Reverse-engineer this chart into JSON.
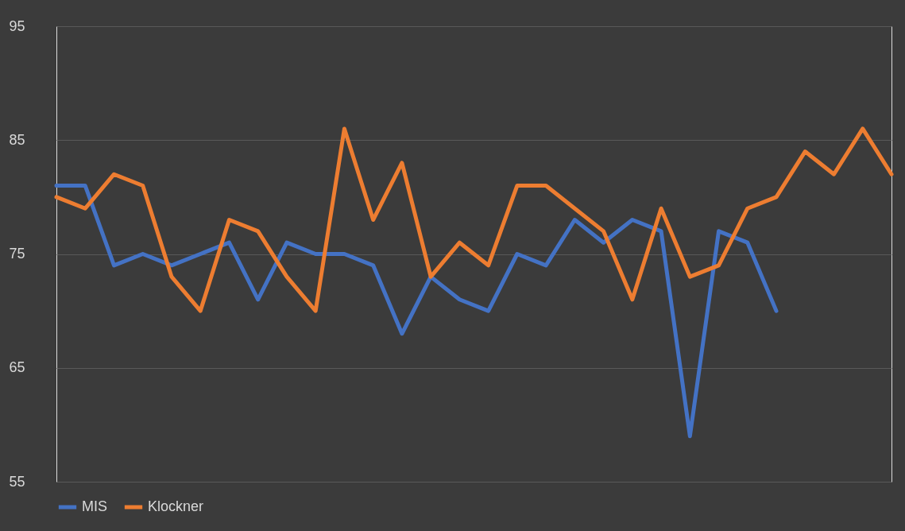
{
  "chart_data": {
    "type": "line",
    "categories": [
      null,
      null,
      null,
      null,
      null,
      null,
      null,
      null,
      null,
      null,
      null,
      null,
      null,
      null,
      null,
      null,
      null,
      null,
      null,
      null,
      null,
      null,
      null,
      null,
      null,
      null,
      null,
      null,
      null,
      null
    ],
    "series": [
      {
        "name": "MIS",
        "color": "#4472c4",
        "values": [
          81,
          81,
          74,
          75,
          74,
          75,
          76,
          71,
          76,
          75,
          75,
          74,
          68,
          73,
          71,
          70,
          75,
          74,
          78,
          76,
          78,
          77,
          59,
          77,
          76,
          70,
          null,
          null,
          null,
          null
        ]
      },
      {
        "name": "Klockner",
        "color": "#ed7d31",
        "values": [
          80,
          79,
          82,
          81,
          73,
          70,
          78,
          77,
          73,
          70,
          86,
          78,
          83,
          73,
          76,
          74,
          81,
          81,
          79,
          77,
          71,
          79,
          73,
          74,
          79,
          80,
          84,
          82,
          86,
          82
        ]
      }
    ],
    "ylim": [
      55,
      95
    ],
    "yticks": [
      55,
      65,
      75,
      85,
      95
    ],
    "grid": "y",
    "legend": "bottom",
    "marker": "none",
    "line_style": "solid"
  }
}
